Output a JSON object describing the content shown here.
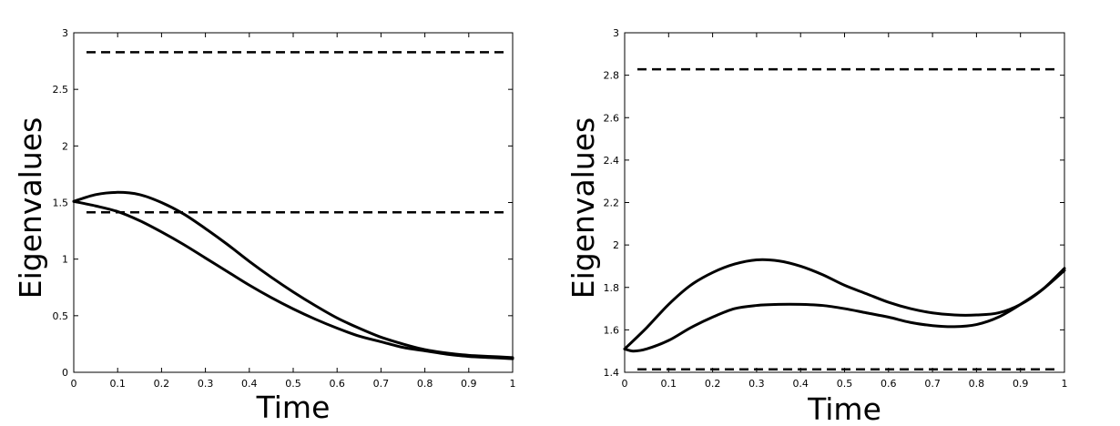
{
  "chart_data": [
    {
      "type": "line",
      "xlabel": "Time",
      "ylabel": "Eigenvalues",
      "xlim": [
        0,
        1
      ],
      "ylim": [
        0,
        3
      ],
      "xticks": [
        0,
        0.1,
        0.2,
        0.3,
        0.4,
        0.5,
        0.6,
        0.7,
        0.8,
        0.9,
        1
      ],
      "xtick_labels": [
        "0",
        "0.1",
        "0.2",
        "0.3",
        "0.4",
        "0.5",
        "0.6",
        "0.7",
        "0.8",
        "0.9",
        "1"
      ],
      "yticks": [
        0,
        0.5,
        1,
        1.5,
        2,
        2.5,
        3
      ],
      "ytick_labels": [
        "0",
        "0.5",
        "1",
        "1.5",
        "2",
        "2.5",
        "3"
      ],
      "grid": false,
      "color": "#000000",
      "hlines": [
        2.828,
        1.414
      ],
      "series": [
        {
          "x": [
            0,
            0.05,
            0.1,
            0.15,
            0.2,
            0.25,
            0.3,
            0.35,
            0.4,
            0.45,
            0.5,
            0.55,
            0.6,
            0.65,
            0.7,
            0.75,
            0.8,
            0.85,
            0.9,
            0.95,
            1
          ],
          "values": [
            1.51,
            1.57,
            1.59,
            1.57,
            1.5,
            1.4,
            1.27,
            1.13,
            0.98,
            0.84,
            0.71,
            0.59,
            0.48,
            0.39,
            0.31,
            0.25,
            0.2,
            0.17,
            0.15,
            0.14,
            0.13
          ]
        },
        {
          "x": [
            0,
            0.05,
            0.1,
            0.15,
            0.2,
            0.25,
            0.3,
            0.35,
            0.4,
            0.45,
            0.5,
            0.55,
            0.6,
            0.65,
            0.7,
            0.75,
            0.8,
            0.85,
            0.9,
            0.95,
            1
          ],
          "values": [
            1.51,
            1.47,
            1.42,
            1.34,
            1.24,
            1.13,
            1.01,
            0.89,
            0.77,
            0.66,
            0.56,
            0.47,
            0.39,
            0.32,
            0.27,
            0.22,
            0.19,
            0.16,
            0.14,
            0.13,
            0.12
          ]
        }
      ]
    },
    {
      "type": "line",
      "xlabel": "Time",
      "ylabel": "Eigenvalues",
      "xlim": [
        0,
        1
      ],
      "ylim": [
        1.4,
        3
      ],
      "xticks": [
        0,
        0.1,
        0.2,
        0.3,
        0.4,
        0.5,
        0.6,
        0.7,
        0.8,
        0.9,
        1
      ],
      "xtick_labels": [
        "0",
        "0.1",
        "0.2",
        "0.3",
        "0.4",
        "0.5",
        "0.6",
        "0.7",
        "0.8",
        "0.9",
        "1"
      ],
      "yticks": [
        1.4,
        1.6,
        1.8,
        2,
        2.2,
        2.4,
        2.6,
        2.8,
        3
      ],
      "ytick_labels": [
        "1.4",
        "1.6",
        "1.8",
        "2",
        "2.2",
        "2.4",
        "2.6",
        "2.8",
        "3"
      ],
      "grid": false,
      "color": "#000000",
      "hlines": [
        2.828,
        1.414
      ],
      "series": [
        {
          "x": [
            0,
            0.05,
            0.1,
            0.15,
            0.2,
            0.25,
            0.3,
            0.35,
            0.4,
            0.45,
            0.5,
            0.55,
            0.6,
            0.65,
            0.7,
            0.75,
            0.8,
            0.85,
            0.9,
            0.95,
            1
          ],
          "values": [
            1.51,
            1.61,
            1.72,
            1.81,
            1.87,
            1.91,
            1.93,
            1.925,
            1.9,
            1.86,
            1.81,
            1.77,
            1.73,
            1.7,
            1.68,
            1.67,
            1.67,
            1.68,
            1.72,
            1.79,
            1.89
          ]
        },
        {
          "x": [
            0,
            0.02,
            0.05,
            0.1,
            0.15,
            0.2,
            0.25,
            0.3,
            0.35,
            0.4,
            0.45,
            0.5,
            0.55,
            0.6,
            0.65,
            0.7,
            0.75,
            0.8,
            0.85,
            0.9,
            0.95,
            1
          ],
          "values": [
            1.51,
            1.5,
            1.51,
            1.55,
            1.61,
            1.66,
            1.7,
            1.715,
            1.72,
            1.72,
            1.715,
            1.7,
            1.68,
            1.66,
            1.635,
            1.62,
            1.615,
            1.625,
            1.66,
            1.72,
            1.79,
            1.88
          ]
        }
      ]
    }
  ]
}
